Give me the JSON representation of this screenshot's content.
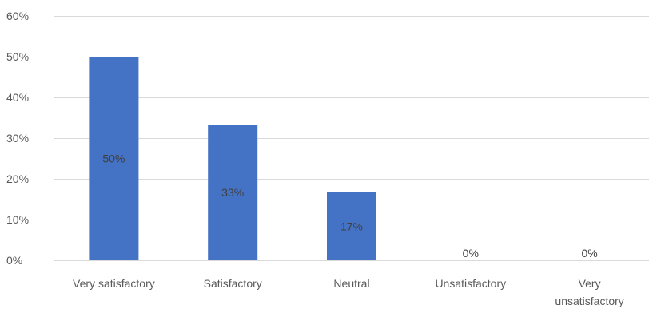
{
  "chart_data": {
    "type": "bar",
    "title": "",
    "xlabel": "",
    "ylabel": "",
    "categories": [
      "Very satisfactory",
      "Satisfactory",
      "Neutral",
      "Unsatisfactory",
      "Very unsatisfactory"
    ],
    "category_label_lines": [
      [
        "Very satisfactory"
      ],
      [
        "Satisfactory"
      ],
      [
        "Neutral"
      ],
      [
        "Unsatisfactory"
      ],
      [
        "Very",
        "unsatisfactory"
      ]
    ],
    "values": [
      50,
      33.3,
      16.7,
      0,
      0
    ],
    "data_labels": [
      "50%",
      "33%",
      "17%",
      "0%",
      "0%"
    ],
    "ylim": [
      0,
      60
    ],
    "y_ticks": [
      0,
      10,
      20,
      30,
      40,
      50,
      60
    ],
    "y_tick_labels": [
      "0%",
      "10%",
      "20%",
      "30%",
      "40%",
      "50%",
      "60%"
    ],
    "grid": true,
    "legend": "none",
    "bar_color": "#4472c4"
  }
}
